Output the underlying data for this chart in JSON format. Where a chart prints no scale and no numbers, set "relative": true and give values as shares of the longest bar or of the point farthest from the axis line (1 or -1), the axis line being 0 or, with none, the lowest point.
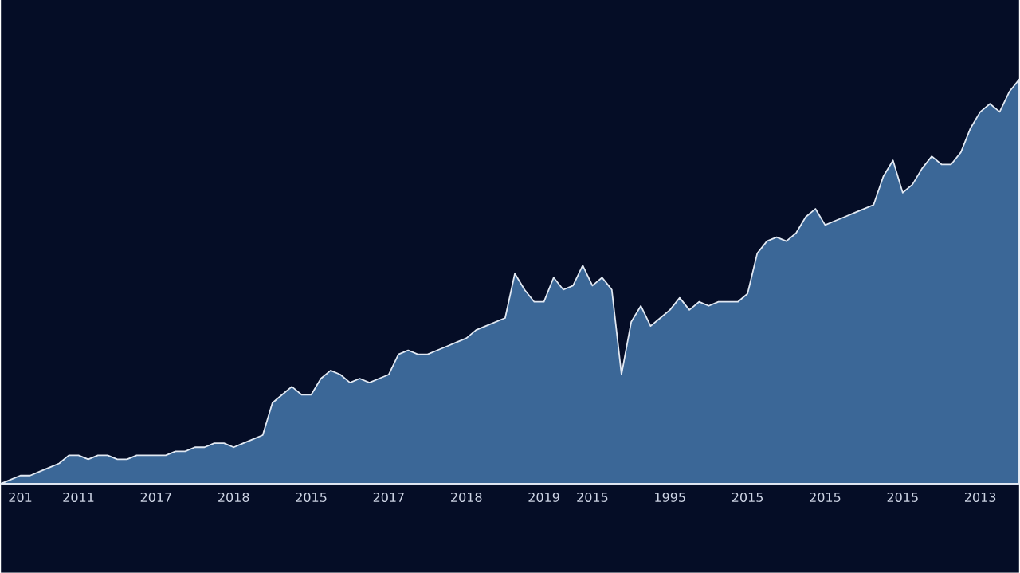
{
  "chart_data": {
    "type": "area",
    "relative": true,
    "color": "#3b6797",
    "categories": [
      null,
      null,
      "201",
      null,
      null,
      null,
      null,
      null,
      "2011",
      null,
      null,
      null,
      null,
      null,
      null,
      null,
      "2017",
      null,
      null,
      null,
      null,
      null,
      null,
      null,
      "2018",
      null,
      null,
      null,
      null,
      null,
      null,
      null,
      "2015",
      null,
      null,
      null,
      null,
      null,
      null,
      null,
      "2017",
      null,
      null,
      null,
      null,
      null,
      null,
      null,
      "2018",
      null,
      null,
      null,
      null,
      null,
      null,
      null,
      "2019",
      null,
      null,
      null,
      null,
      "2015",
      null,
      null,
      null,
      null,
      null,
      null,
      null,
      "1995",
      null,
      null,
      null,
      null,
      null,
      null,
      null,
      "2015",
      null,
      null,
      null,
      null,
      null,
      null,
      null,
      "2015",
      null,
      null,
      null,
      null,
      null,
      null,
      null,
      "2015",
      null,
      null,
      null,
      null,
      null,
      null,
      null,
      "2013",
      null,
      null,
      null,
      null
    ],
    "values": [
      0.0,
      0.01,
      0.02,
      0.02,
      0.03,
      0.04,
      0.05,
      0.07,
      0.07,
      0.06,
      0.07,
      0.07,
      0.06,
      0.06,
      0.07,
      0.07,
      0.07,
      0.07,
      0.08,
      0.08,
      0.09,
      0.09,
      0.1,
      0.1,
      0.09,
      0.1,
      0.11,
      0.12,
      0.2,
      0.22,
      0.24,
      0.22,
      0.22,
      0.26,
      0.28,
      0.27,
      0.25,
      0.26,
      0.25,
      0.26,
      0.27,
      0.32,
      0.33,
      0.32,
      0.32,
      0.33,
      0.34,
      0.35,
      0.36,
      0.38,
      0.39,
      0.4,
      0.41,
      0.52,
      0.48,
      0.45,
      0.45,
      0.51,
      0.48,
      0.49,
      0.54,
      0.49,
      0.51,
      0.48,
      0.27,
      0.4,
      0.44,
      0.39,
      0.41,
      0.43,
      0.46,
      0.43,
      0.45,
      0.44,
      0.45,
      0.45,
      0.45,
      0.47,
      0.57,
      0.6,
      0.61,
      0.6,
      0.62,
      0.66,
      0.68,
      0.64,
      0.65,
      0.66,
      0.67,
      0.68,
      0.69,
      0.76,
      0.8,
      0.72,
      0.74,
      0.78,
      0.81,
      0.79,
      0.79,
      0.82,
      0.88,
      0.92,
      0.94,
      0.92,
      0.97,
      1.0
    ]
  }
}
